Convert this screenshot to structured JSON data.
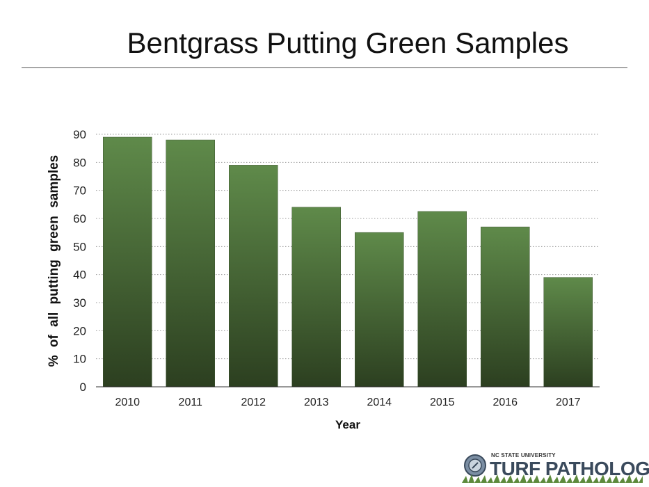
{
  "slide": {
    "title": "Bentgrass Putting Green Samples"
  },
  "logo": {
    "university": "NC STATE UNIVERSITY",
    "name": "TURF PATHOLOGY"
  },
  "colors": {
    "bar_top": "#5f8a4a",
    "bar_bottom": "#2c3f20",
    "grid": "#999999",
    "axis": "#333333",
    "logo_text": "#3a4a5c"
  },
  "chart_data": {
    "type": "bar",
    "title": "",
    "xlabel": "Year",
    "ylabel": "% of all putting green samples",
    "categories": [
      "2010",
      "2011",
      "2012",
      "2013",
      "2014",
      "2015",
      "2016",
      "2017"
    ],
    "values": [
      89,
      88,
      79,
      64,
      55,
      62.5,
      57,
      39
    ],
    "ylim": [
      0,
      90
    ],
    "yticks": [
      0,
      10,
      20,
      30,
      40,
      50,
      60,
      70,
      80,
      90
    ],
    "grid": true,
    "grid_style": "dotted",
    "legend": "none"
  }
}
